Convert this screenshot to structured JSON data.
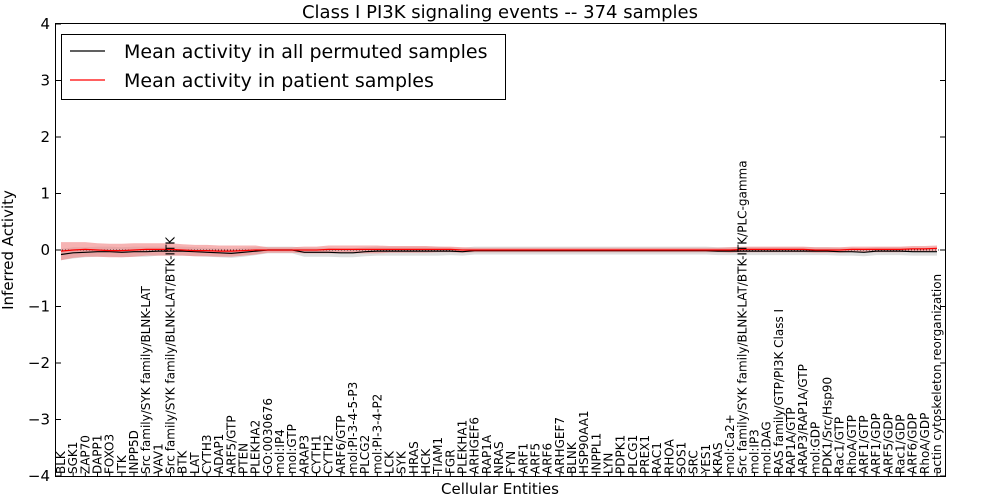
{
  "chart_data": {
    "type": "line",
    "title": "Class I PI3K signaling events -- 374 samples",
    "xlabel": "Cellular Entities",
    "ylabel": "Inferred Activity",
    "ylim": [
      -4,
      4
    ],
    "yticks": [
      4,
      3,
      2,
      1,
      0,
      -1,
      -2,
      -3,
      -4
    ],
    "ytick_labels": [
      "4",
      "3",
      "2",
      "1",
      "0",
      "−1",
      "−2",
      "−3",
      "−4"
    ],
    "legend_position": "top-left",
    "categories": [
      "BLK",
      "SGK1",
      "ZAP70",
      "DAPP1",
      "FOXO3",
      "ITK",
      "INPP5D",
      "Src family/SYK family/BLNK-LAT",
      "VAV1",
      "Src family/SYK family/BLNK-LAT/BTK-ITK",
      "BTK",
      "LAT",
      "CYTH3",
      "ADAP1",
      "ARF5/GTP",
      "PTEN",
      "PLEKHA2",
      "GO:0030676",
      "mol:IP4",
      "mol:GTP",
      "ARAP3",
      "CYTH1",
      "CYTH2",
      "ARF6/GTP",
      "mol:PI-3-4-5-P3",
      "PLCG2",
      "mol:PI-3-4-P2",
      "LCK",
      "SYK",
      "HRAS",
      "HCK",
      "TIAM1",
      "FGR",
      "PLEKHA1",
      "ARHGEF6",
      "RAP1A",
      "NRAS",
      "FYN",
      "ARF1",
      "ARF5",
      "ARF6",
      "ARHGEF7",
      "BLNK",
      "HSP90AA1",
      "INPPL1",
      "LYN",
      "PDPK1",
      "PLCG1",
      "PREX1",
      "RAC1",
      "RHOA",
      "SOS1",
      "SRC",
      "YES1",
      "KRAS",
      "mol:Ca2+",
      "Src family/SYK family/BLNK-LAT/BTK-ITK/PLC-gamma",
      "mol:IP3",
      "mol:DAG",
      "RAS family/GTP/PI3K Class I",
      "RAP1A/GTP",
      "ARAP3/RAP1A/GTP",
      "mol:GDP",
      "PDK1/Src/Hsp90",
      "Rac1/GTP",
      "RhoA/GTP",
      "ARF1/GTP",
      "ARF1/GDP",
      "ARF5/GDP",
      "Rac1/GDP",
      "ARF6/GDP",
      "RhoA/GDP",
      "actin cytoskeleton reorganization"
    ],
    "series": [
      {
        "name": "Mean activity in all permuted samples",
        "color": "#000000",
        "values": [
          -0.08,
          -0.05,
          -0.04,
          -0.03,
          -0.03,
          -0.04,
          -0.03,
          -0.03,
          -0.02,
          -0.02,
          -0.02,
          -0.03,
          -0.04,
          -0.05,
          -0.06,
          -0.04,
          -0.02,
          0.0,
          0.0,
          0.0,
          -0.04,
          -0.04,
          -0.04,
          -0.05,
          -0.05,
          -0.03,
          -0.02,
          -0.02,
          -0.02,
          -0.02,
          -0.02,
          -0.02,
          -0.02,
          -0.03,
          -0.01,
          -0.01,
          -0.01,
          -0.01,
          -0.01,
          -0.01,
          -0.01,
          -0.01,
          -0.01,
          -0.01,
          -0.01,
          -0.01,
          -0.01,
          -0.01,
          -0.01,
          -0.01,
          -0.01,
          -0.01,
          -0.01,
          -0.01,
          -0.02,
          -0.02,
          -0.02,
          -0.02,
          -0.02,
          -0.02,
          -0.02,
          -0.02,
          -0.02,
          -0.02,
          -0.03,
          -0.03,
          -0.04,
          -0.02,
          -0.02,
          -0.02,
          -0.03,
          -0.03,
          -0.03
        ],
        "band": [
          0.1,
          0.1,
          0.09,
          0.09,
          0.09,
          0.09,
          0.09,
          0.09,
          0.08,
          0.08,
          0.08,
          0.08,
          0.08,
          0.08,
          0.08,
          0.08,
          0.07,
          0.06,
          0.06,
          0.06,
          0.08,
          0.08,
          0.08,
          0.08,
          0.08,
          0.08,
          0.08,
          0.08,
          0.08,
          0.08,
          0.08,
          0.08,
          0.07,
          0.07,
          0.07,
          0.07,
          0.07,
          0.07,
          0.07,
          0.07,
          0.07,
          0.07,
          0.07,
          0.07,
          0.07,
          0.07,
          0.07,
          0.07,
          0.07,
          0.07,
          0.07,
          0.07,
          0.07,
          0.07,
          0.07,
          0.07,
          0.07,
          0.07,
          0.07,
          0.07,
          0.07,
          0.07,
          0.07,
          0.07,
          0.07,
          0.07,
          0.07,
          0.07,
          0.07,
          0.07,
          0.07,
          0.07,
          0.07
        ]
      },
      {
        "name": "Mean activity in patient samples",
        "color": "#ff0000",
        "values": [
          -0.02,
          0.0,
          0.01,
          0.0,
          -0.01,
          -0.01,
          0.0,
          0.01,
          0.01,
          0.01,
          0.0,
          -0.01,
          -0.01,
          -0.02,
          -0.02,
          -0.01,
          0.0,
          0.0,
          0.0,
          0.0,
          0.0,
          0.0,
          0.01,
          0.01,
          0.01,
          0.01,
          0.01,
          0.01,
          0.01,
          0.01,
          0.01,
          0.01,
          0.01,
          0.0,
          0.0,
          0.0,
          0.0,
          0.0,
          0.0,
          0.0,
          0.0,
          0.0,
          0.0,
          0.0,
          0.0,
          0.0,
          0.0,
          0.0,
          0.0,
          0.0,
          0.0,
          0.0,
          0.0,
          0.0,
          0.0,
          0.0,
          0.01,
          0.01,
          0.01,
          0.01,
          0.01,
          0.01,
          0.0,
          0.0,
          0.0,
          0.01,
          0.01,
          0.01,
          0.01,
          0.01,
          0.02,
          0.02,
          0.03
        ],
        "band": [
          0.16,
          0.14,
          0.13,
          0.12,
          0.12,
          0.12,
          0.12,
          0.11,
          0.11,
          0.11,
          0.1,
          0.1,
          0.1,
          0.1,
          0.1,
          0.09,
          0.08,
          0.05,
          0.05,
          0.05,
          0.06,
          0.06,
          0.07,
          0.07,
          0.07,
          0.07,
          0.07,
          0.06,
          0.06,
          0.06,
          0.06,
          0.05,
          0.05,
          0.05,
          0.04,
          0.04,
          0.04,
          0.04,
          0.04,
          0.04,
          0.04,
          0.04,
          0.04,
          0.04,
          0.04,
          0.04,
          0.04,
          0.04,
          0.04,
          0.04,
          0.04,
          0.04,
          0.04,
          0.04,
          0.04,
          0.05,
          0.05,
          0.05,
          0.05,
          0.05,
          0.05,
          0.05,
          0.05,
          0.05,
          0.05,
          0.05,
          0.05,
          0.05,
          0.05,
          0.05,
          0.05,
          0.05,
          0.05
        ]
      }
    ]
  },
  "colors": {
    "permuted_band": "#d3d3d3",
    "patient_band": "#f08080",
    "reference_line": "#000000"
  }
}
